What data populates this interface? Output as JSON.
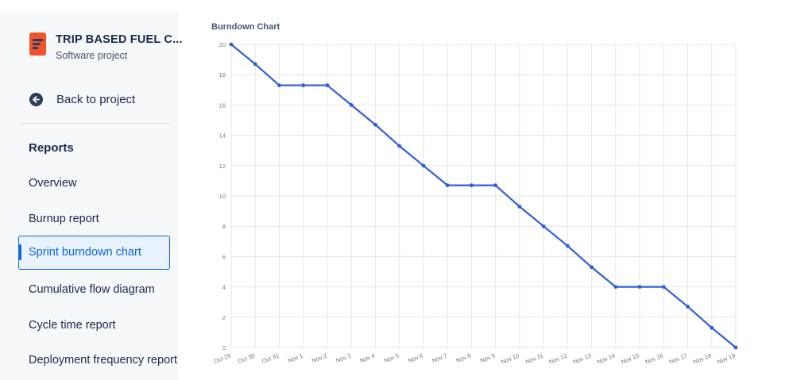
{
  "sidebar": {
    "project": {
      "name": "TRIP BASED FUEL C...",
      "type": "Software project",
      "icon": "project-board-icon",
      "icon_color": "#f0542d"
    },
    "back": {
      "label": "Back to project",
      "icon": "arrow-left-circle-icon"
    },
    "section_title": "Reports",
    "items": [
      {
        "label": "Overview",
        "selected": false
      },
      {
        "label": "Burnup report",
        "selected": false
      },
      {
        "label": "Sprint burndown chart",
        "selected": true
      },
      {
        "label": "Cumulative flow diagram",
        "selected": false
      },
      {
        "label": "Cycle time report",
        "selected": false
      },
      {
        "label": "Deployment frequency report",
        "selected": false
      }
    ],
    "accent_color": "#0c66e4"
  },
  "chart_data": {
    "type": "line",
    "title": "Burndown Chart",
    "xlabel": "",
    "ylabel": "",
    "x": [
      "Oct 29",
      "Oct 30",
      "Oct 31",
      "Nov 1",
      "Nov 2",
      "Nov 3",
      "Nov 4",
      "Nov 5",
      "Nov 6",
      "Nov 7",
      "Nov 8",
      "Nov 9",
      "Nov 10",
      "Nov 11",
      "Nov 12",
      "Nov 13",
      "Nov 14",
      "Nov 15",
      "Nov 16",
      "Nov 17",
      "Nov 18",
      "Nov 19"
    ],
    "series": [
      {
        "values": [
          20,
          18.7,
          17.3,
          17.3,
          17.3,
          16,
          14.7,
          13.3,
          12,
          10.7,
          10.7,
          10.7,
          9.3,
          8,
          6.7,
          5.3,
          4,
          4,
          4,
          2.7,
          1.3,
          0
        ],
        "color": "#2f5fd6"
      }
    ],
    "ylim": [
      0,
      20
    ],
    "yticks": [
      0,
      2,
      4,
      6,
      8,
      10,
      12,
      14,
      16,
      18,
      20
    ],
    "grid": true,
    "legend": "none"
  }
}
